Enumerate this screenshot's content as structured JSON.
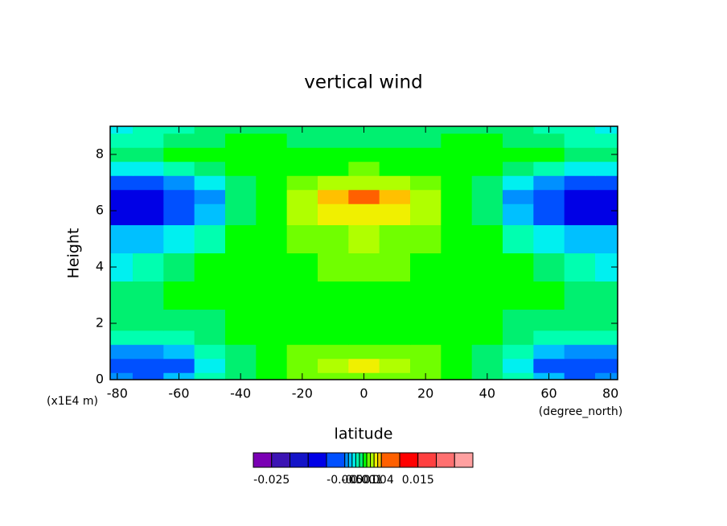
{
  "chart_data": {
    "type": "contour",
    "title": "vertical wind",
    "x_label": "latitude",
    "y_label": "Height",
    "x_units": "(degree_north)",
    "y_units": "(x1E4 m)",
    "xlim": [
      -82.3,
      82.3
    ],
    "ylim": [
      0,
      9
    ],
    "xticks": [
      -80,
      -60,
      -40,
      -20,
      0,
      20,
      40,
      60,
      80
    ],
    "yticks": [
      0,
      2,
      4,
      6,
      8
    ],
    "x": [
      -80,
      -70,
      -60,
      -50,
      -40,
      -30,
      -20,
      -10,
      0,
      10,
      20,
      30,
      40,
      50,
      60,
      70,
      80
    ],
    "y": [
      0,
      0.5,
      1,
      1.5,
      2,
      3,
      4,
      5,
      6,
      6.5,
      7,
      7.5,
      8,
      8.5,
      9
    ],
    "z": [
      [
        -0.005,
        -0.006,
        -0.004,
        -0.002,
        -0.001,
        0.0005,
        0.001,
        0.0015,
        0.0015,
        0.0015,
        0.001,
        0.0005,
        -0.001,
        -0.002,
        -0.004,
        -0.006,
        -0.005
      ],
      [
        -0.008,
        -0.009,
        -0.006,
        -0.003,
        -0.001,
        0.0005,
        0.0015,
        0.0025,
        0.003,
        0.0025,
        0.0015,
        0.0005,
        -0.001,
        -0.003,
        -0.006,
        -0.009,
        -0.008
      ],
      [
        -0.005,
        -0.005,
        -0.004,
        -0.002,
        -0.0005,
        0.0005,
        0.001,
        0.0015,
        0.0015,
        0.0015,
        0.001,
        0.0005,
        -0.0005,
        -0.002,
        -0.004,
        -0.005,
        -0.005
      ],
      [
        -0.002,
        -0.002,
        -0.0015,
        -0.001,
        0,
        0.0005,
        0.0005,
        0.0005,
        0.0005,
        0.0005,
        0.0005,
        0.0005,
        0,
        -0.001,
        -0.0015,
        -0.002,
        -0.002
      ],
      [
        -0.001,
        -0.001,
        -0.0008,
        -0.0005,
        0.0002,
        0.0005,
        0.0005,
        0.0005,
        0.0005,
        0.0005,
        0.0005,
        0.0005,
        0.0002,
        -0.0005,
        -0.0008,
        -0.001,
        -0.001
      ],
      [
        -0.0005,
        -0.0005,
        0,
        0.0003,
        0.0005,
        0.0005,
        0.0005,
        0.0005,
        0.0005,
        0.0005,
        0.0005,
        0.0005,
        0.0005,
        0.0003,
        0,
        -0.0005,
        -0.0005
      ],
      [
        -0.003,
        -0.002,
        -0.001,
        0,
        0.0005,
        0.0005,
        0.0008,
        0.001,
        0.001,
        0.001,
        0.0008,
        0.0005,
        0.0005,
        0,
        -0.001,
        -0.002,
        -0.003
      ],
      [
        -0.004,
        -0.004,
        -0.003,
        -0.0015,
        0,
        0.0005,
        0.001,
        0.0015,
        0.002,
        0.0015,
        0.001,
        0.0005,
        0,
        -0.0015,
        -0.003,
        -0.004,
        -0.004
      ],
      [
        -0.012,
        -0.011,
        -0.008,
        -0.004,
        -0.001,
        0.0005,
        0.002,
        0.003,
        0.0035,
        0.003,
        0.002,
        0.0005,
        -0.001,
        -0.004,
        -0.008,
        -0.011,
        -0.012
      ],
      [
        -0.014,
        -0.013,
        -0.009,
        -0.005,
        -0.001,
        0.0008,
        0.0025,
        0.004,
        0.0052,
        0.004,
        0.0025,
        0.0008,
        -0.001,
        -0.005,
        -0.009,
        -0.013,
        -0.014
      ],
      [
        -0.008,
        -0.007,
        -0.005,
        -0.003,
        -0.0005,
        0.0005,
        0.0015,
        0.002,
        0.0025,
        0.002,
        0.0015,
        0.0005,
        -0.0005,
        -0.003,
        -0.005,
        -0.007,
        -0.008
      ],
      [
        -0.003,
        -0.003,
        -0.002,
        -0.001,
        0,
        0.0005,
        0.0005,
        0.0008,
        0.001,
        0.0008,
        0.0005,
        0.0005,
        0,
        -0.001,
        -0.002,
        -0.003,
        -0.003
      ],
      [
        -0.0005,
        -0.0005,
        0,
        0.0003,
        0.0005,
        0.0005,
        0.0005,
        0.0005,
        0.0005,
        0.0005,
        0.0005,
        0.0005,
        0.0005,
        0.0003,
        0,
        -0.0005,
        -0.0005
      ],
      [
        -0.002,
        -0.0015,
        -0.001,
        -0.0005,
        0,
        0,
        -0.0005,
        -0.0005,
        -0.0005,
        -0.0005,
        -0.0005,
        0,
        0,
        -0.0005,
        -0.001,
        -0.0015,
        -0.002
      ],
      [
        -0.003,
        -0.002,
        -0.0015,
        -0.001,
        -0.0005,
        -0.0005,
        -0.001,
        -0.001,
        -0.001,
        -0.001,
        -0.001,
        -0.0005,
        -0.0005,
        -0.001,
        -0.0015,
        -0.002,
        -0.003
      ]
    ],
    "levels": [
      -0.03,
      -0.025,
      -0.02,
      -0.015,
      -0.01,
      -0.005,
      -0.004,
      -0.003,
      -0.002,
      -0.001,
      0,
      0.001,
      0.002,
      0.003,
      0.004,
      0.005,
      0.01,
      0.015,
      0.02,
      0.025,
      0.03
    ],
    "colors": [
      "#7a00b4",
      "#3c14b4",
      "#1414c8",
      "#0000e6",
      "#0050ff",
      "#0090ff",
      "#00c0ff",
      "#00f0f0",
      "#00ffb0",
      "#00f070",
      "#00ff00",
      "#70ff00",
      "#b0ff00",
      "#f0f000",
      "#ffc000",
      "#ff6000",
      "#ff0000",
      "#ff4040",
      "#ff7070",
      "#ffa0a0"
    ],
    "colorbar_ticks": [
      -0.025,
      -0.005,
      -0.001,
      0.001,
      0.004,
      0.015
    ]
  }
}
